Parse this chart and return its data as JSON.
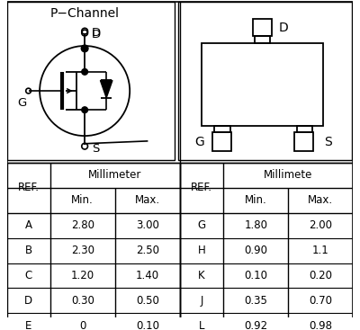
{
  "title": "P−Channel",
  "table_left_header": "Millimeter",
  "table_right_header": "Millimete",
  "table_left_rows": [
    [
      "A",
      "2.80",
      "3.00"
    ],
    [
      "B",
      "2.30",
      "2.50"
    ],
    [
      "C",
      "1.20",
      "1.40"
    ],
    [
      "D",
      "0.30",
      "0.50"
    ],
    [
      "E",
      "0",
      "0.10"
    ]
  ],
  "table_right_rows": [
    [
      "G",
      "1.80",
      "2.00"
    ],
    [
      "H",
      "0.90",
      "1.1"
    ],
    [
      "K",
      "0.10",
      "0.20"
    ],
    [
      "J",
      "0.35",
      "0.70"
    ],
    [
      "L",
      "0.92",
      "0.98"
    ]
  ],
  "bg_color": "#ffffff"
}
